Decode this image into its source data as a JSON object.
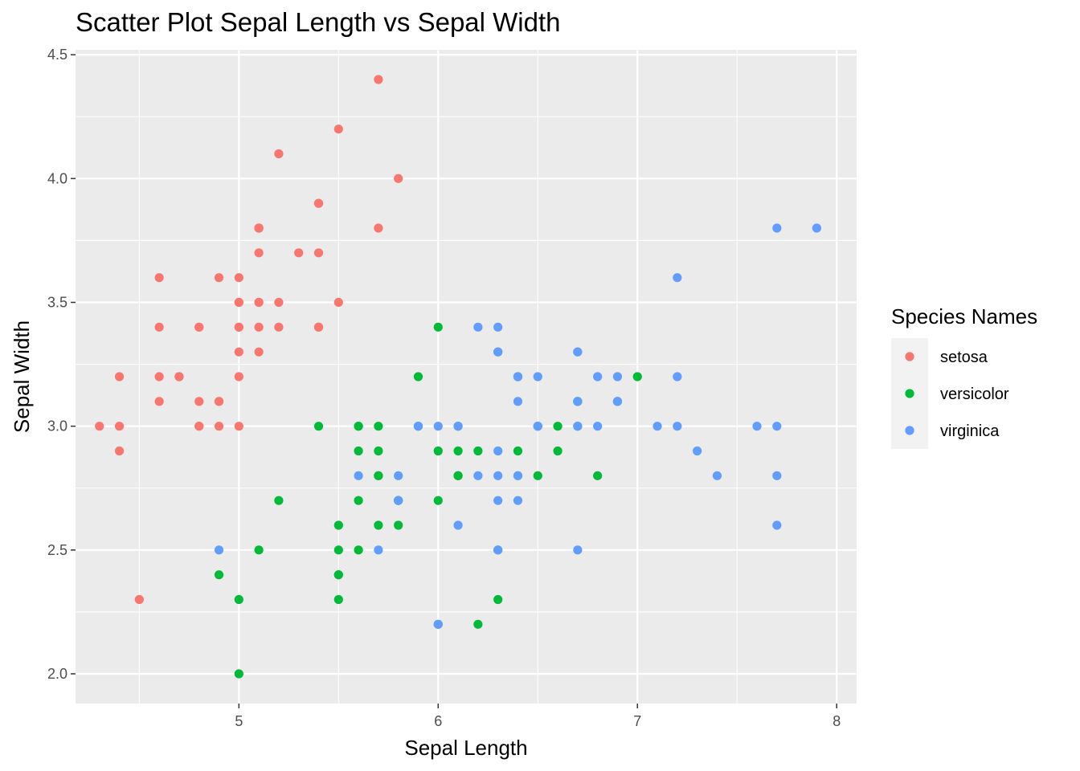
{
  "chart_data": {
    "type": "scatter",
    "title": "Scatter Plot Sepal Length vs Sepal Width",
    "xlabel": "Sepal Length",
    "ylabel": "Sepal Width",
    "xlim": [
      4.18,
      8.1
    ],
    "ylim": [
      1.88,
      4.52
    ],
    "xticks": [
      5,
      6,
      7,
      8
    ],
    "xtick_labels": [
      "5",
      "6",
      "7",
      "8"
    ],
    "yticks": [
      2.0,
      2.5,
      3.0,
      3.5,
      4.0,
      4.5
    ],
    "ytick_labels": [
      "2.0",
      "2.5",
      "3.0",
      "3.5",
      "4.0",
      "4.5"
    ],
    "grid": true,
    "legend": {
      "title": "Species Names",
      "position": "right"
    },
    "series": [
      {
        "name": "setosa",
        "color": "#F8766D",
        "points": [
          [
            5.1,
            3.5
          ],
          [
            4.9,
            3.0
          ],
          [
            4.7,
            3.2
          ],
          [
            4.6,
            3.1
          ],
          [
            5.0,
            3.6
          ],
          [
            5.4,
            3.9
          ],
          [
            4.6,
            3.4
          ],
          [
            5.0,
            3.4
          ],
          [
            4.4,
            2.9
          ],
          [
            4.9,
            3.1
          ],
          [
            5.4,
            3.7
          ],
          [
            4.8,
            3.4
          ],
          [
            4.8,
            3.0
          ],
          [
            4.3,
            3.0
          ],
          [
            5.8,
            4.0
          ],
          [
            5.7,
            4.4
          ],
          [
            5.4,
            3.9
          ],
          [
            5.1,
            3.5
          ],
          [
            5.7,
            3.8
          ],
          [
            5.1,
            3.8
          ],
          [
            5.4,
            3.4
          ],
          [
            5.1,
            3.7
          ],
          [
            4.6,
            3.6
          ],
          [
            5.1,
            3.3
          ],
          [
            4.8,
            3.4
          ],
          [
            5.0,
            3.0
          ],
          [
            5.0,
            3.4
          ],
          [
            5.2,
            3.5
          ],
          [
            5.2,
            3.4
          ],
          [
            4.7,
            3.2
          ],
          [
            4.8,
            3.1
          ],
          [
            5.4,
            3.4
          ],
          [
            5.2,
            4.1
          ],
          [
            5.5,
            4.2
          ],
          [
            4.9,
            3.1
          ],
          [
            5.0,
            3.2
          ],
          [
            5.5,
            3.5
          ],
          [
            4.9,
            3.6
          ],
          [
            4.4,
            3.0
          ],
          [
            5.1,
            3.4
          ],
          [
            5.0,
            3.5
          ],
          [
            4.5,
            2.3
          ],
          [
            4.4,
            3.2
          ],
          [
            5.0,
            3.5
          ],
          [
            5.1,
            3.8
          ],
          [
            4.8,
            3.0
          ],
          [
            5.1,
            3.8
          ],
          [
            4.6,
            3.2
          ],
          [
            5.3,
            3.7
          ],
          [
            5.0,
            3.3
          ]
        ]
      },
      {
        "name": "versicolor",
        "color": "#00BA38",
        "points": [
          [
            7.0,
            3.2
          ],
          [
            6.4,
            3.2
          ],
          [
            6.9,
            3.1
          ],
          [
            5.5,
            2.3
          ],
          [
            6.5,
            2.8
          ],
          [
            5.7,
            2.8
          ],
          [
            6.3,
            3.3
          ],
          [
            4.9,
            2.4
          ],
          [
            6.6,
            2.9
          ],
          [
            5.2,
            2.7
          ],
          [
            5.0,
            2.0
          ],
          [
            5.9,
            3.0
          ],
          [
            6.0,
            2.2
          ],
          [
            6.1,
            2.9
          ],
          [
            5.6,
            2.9
          ],
          [
            6.7,
            3.1
          ],
          [
            5.6,
            3.0
          ],
          [
            5.8,
            2.7
          ],
          [
            6.2,
            2.2
          ],
          [
            5.6,
            2.5
          ],
          [
            5.9,
            3.2
          ],
          [
            6.1,
            2.8
          ],
          [
            6.3,
            2.5
          ],
          [
            6.1,
            2.8
          ],
          [
            6.4,
            2.9
          ],
          [
            6.6,
            3.0
          ],
          [
            6.8,
            2.8
          ],
          [
            6.7,
            3.0
          ],
          [
            6.0,
            2.9
          ],
          [
            5.7,
            2.6
          ],
          [
            5.5,
            2.4
          ],
          [
            5.5,
            2.4
          ],
          [
            5.8,
            2.7
          ],
          [
            6.0,
            2.7
          ],
          [
            5.4,
            3.0
          ],
          [
            6.0,
            3.4
          ],
          [
            6.7,
            3.1
          ],
          [
            6.3,
            2.3
          ],
          [
            5.6,
            3.0
          ],
          [
            5.5,
            2.5
          ],
          [
            5.5,
            2.6
          ],
          [
            6.1,
            3.0
          ],
          [
            5.8,
            2.6
          ],
          [
            5.0,
            2.3
          ],
          [
            5.6,
            2.7
          ],
          [
            5.7,
            3.0
          ],
          [
            5.7,
            2.9
          ],
          [
            6.2,
            2.9
          ],
          [
            5.1,
            2.5
          ],
          [
            5.7,
            2.8
          ]
        ]
      },
      {
        "name": "virginica",
        "color": "#619CFF",
        "points": [
          [
            6.3,
            3.3
          ],
          [
            5.8,
            2.7
          ],
          [
            7.1,
            3.0
          ],
          [
            6.3,
            2.9
          ],
          [
            6.5,
            3.0
          ],
          [
            7.6,
            3.0
          ],
          [
            4.9,
            2.5
          ],
          [
            7.3,
            2.9
          ],
          [
            6.7,
            2.5
          ],
          [
            7.2,
            3.6
          ],
          [
            6.5,
            3.2
          ],
          [
            6.4,
            2.7
          ],
          [
            6.8,
            3.0
          ],
          [
            5.7,
            2.5
          ],
          [
            5.8,
            2.8
          ],
          [
            6.4,
            3.2
          ],
          [
            6.5,
            3.0
          ],
          [
            7.7,
            3.8
          ],
          [
            7.7,
            2.6
          ],
          [
            6.0,
            2.2
          ],
          [
            6.9,
            3.2
          ],
          [
            5.6,
            2.8
          ],
          [
            7.7,
            2.8
          ],
          [
            6.3,
            2.7
          ],
          [
            6.7,
            3.3
          ],
          [
            7.2,
            3.2
          ],
          [
            6.2,
            2.8
          ],
          [
            6.1,
            3.0
          ],
          [
            6.4,
            2.8
          ],
          [
            7.2,
            3.0
          ],
          [
            7.4,
            2.8
          ],
          [
            7.9,
            3.8
          ],
          [
            6.4,
            2.8
          ],
          [
            6.3,
            2.8
          ],
          [
            6.1,
            2.6
          ],
          [
            7.7,
            3.0
          ],
          [
            6.3,
            3.4
          ],
          [
            6.4,
            3.1
          ],
          [
            6.0,
            3.0
          ],
          [
            6.9,
            3.1
          ],
          [
            6.7,
            3.1
          ],
          [
            6.9,
            3.1
          ],
          [
            5.8,
            2.7
          ],
          [
            6.8,
            3.2
          ],
          [
            6.7,
            3.3
          ],
          [
            6.7,
            3.0
          ],
          [
            6.3,
            2.5
          ],
          [
            6.5,
            3.0
          ],
          [
            6.2,
            3.4
          ],
          [
            5.9,
            3.0
          ]
        ]
      }
    ]
  }
}
